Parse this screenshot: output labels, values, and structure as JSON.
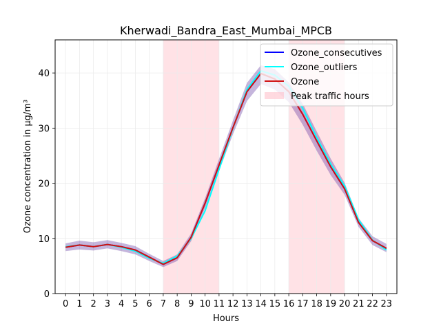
{
  "chart_data": {
    "type": "line",
    "title": "Kherwadi_Bandra_East_Mumbai_MPCB",
    "xlabel": "Hours",
    "ylabel": "Ozone concentration in µg/m³",
    "x": [
      0,
      1,
      2,
      3,
      4,
      5,
      6,
      7,
      8,
      9,
      10,
      11,
      12,
      13,
      14,
      15,
      16,
      17,
      18,
      19,
      20,
      21,
      22,
      23
    ],
    "xlim": [
      -0.75,
      23.75
    ],
    "ylim": [
      0,
      46
    ],
    "yticks": [
      0,
      10,
      20,
      30,
      40
    ],
    "grid": true,
    "legend_position": "top-right",
    "series": [
      {
        "name": "Ozone_consecutives",
        "color": "#0000ff",
        "values": [
          8.4,
          8.8,
          8.5,
          8.9,
          8.5,
          7.9,
          6.6,
          5.3,
          6.5,
          10.2,
          16.4,
          23.3,
          30.1,
          36.6,
          39.9,
          38.9,
          36.6,
          32.5,
          27.7,
          23.0,
          19.0,
          12.9,
          9.6,
          8.2
        ],
        "band": {
          "lower": [
            7.7,
            8.0,
            7.8,
            8.2,
            7.7,
            7.1,
            5.9,
            4.8,
            5.9,
            9.5,
            15.5,
            22.2,
            28.9,
            34.9,
            38.0,
            37.0,
            34.7,
            30.6,
            25.9,
            21.5,
            17.9,
            12.1,
            8.8,
            7.5
          ],
          "upper": [
            9.1,
            9.6,
            9.3,
            9.7,
            9.2,
            8.6,
            7.2,
            5.9,
            7.1,
            10.9,
            17.3,
            24.4,
            31.4,
            38.2,
            41.4,
            40.7,
            38.3,
            34.4,
            29.4,
            24.5,
            20.1,
            13.7,
            10.4,
            9.0
          ]
        }
      },
      {
        "name": "Ozone_outliers",
        "color": "#00ffff",
        "values": [
          8.5,
          8.8,
          8.5,
          8.9,
          8.4,
          7.7,
          6.4,
          5.5,
          6.8,
          10.0,
          15.0,
          22.5,
          30.0,
          37.0,
          40.4,
          39.6,
          37.6,
          33.6,
          28.3,
          23.5,
          19.5,
          13.4,
          9.7,
          7.9
        ]
      },
      {
        "name": "Ozone",
        "color": "#d01010",
        "values": [
          8.4,
          8.8,
          8.5,
          8.9,
          8.5,
          7.9,
          6.6,
          5.3,
          6.5,
          10.2,
          16.4,
          23.3,
          30.1,
          36.6,
          39.9,
          38.9,
          36.6,
          32.5,
          27.7,
          23.0,
          19.0,
          12.9,
          9.6,
          8.2
        ]
      }
    ],
    "shaded_regions": [
      {
        "name": "Peak traffic hours",
        "from": 7,
        "to": 11,
        "color": "#ffb6c1"
      },
      {
        "from": 16,
        "to": 20,
        "color": "#ffb6c1"
      }
    ],
    "legend_entries": [
      "Ozone_consecutives",
      "Ozone_outliers",
      "Ozone",
      "Peak traffic hours"
    ]
  }
}
